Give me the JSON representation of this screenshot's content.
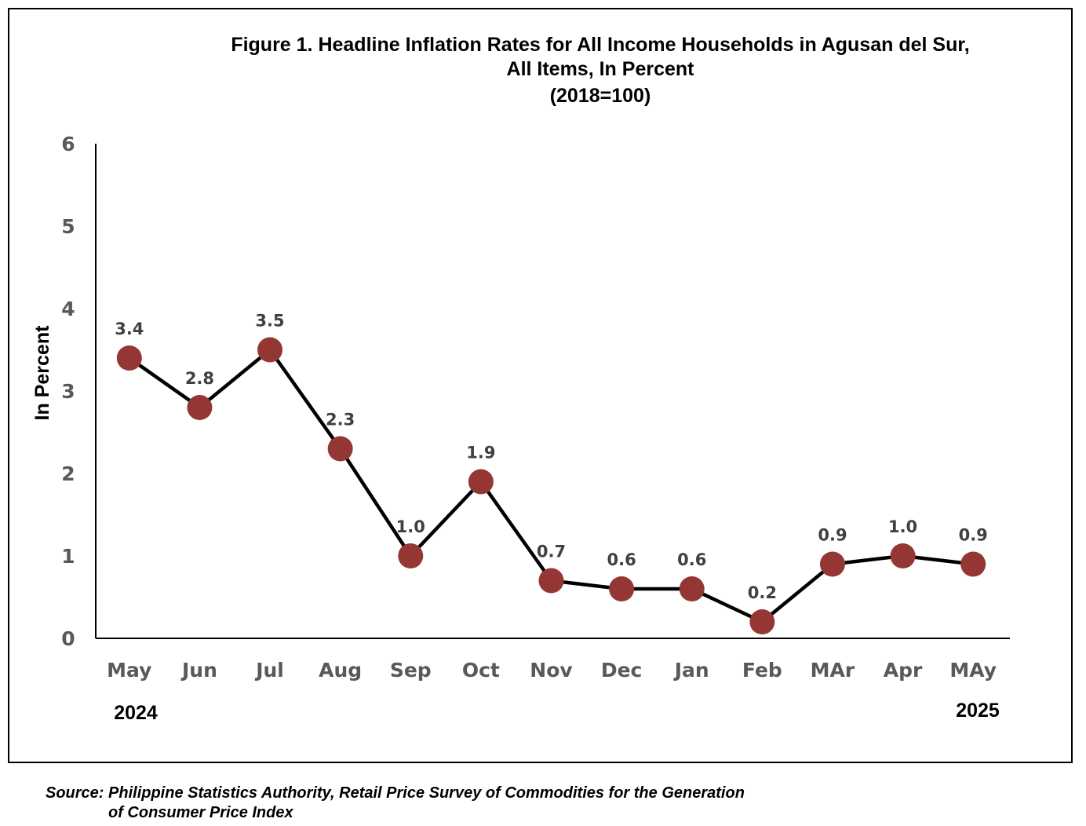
{
  "chart_data": {
    "type": "line",
    "title": [
      "Figure 1. Headline Inflation Rates for All Income Households in Agusan del Sur,",
      "All Items, In Percent",
      "(2018=100)"
    ],
    "ylabel": "In Percent",
    "xlabel": "",
    "categories": [
      "May",
      "Jun",
      "Jul",
      "Aug",
      "Sep",
      "Oct",
      "Nov",
      "Dec",
      "Jan",
      "Feb",
      "MAr",
      "Apr",
      "MAy"
    ],
    "series": [
      {
        "values": [
          3.4,
          2.8,
          3.5,
          2.3,
          1.0,
          1.9,
          0.7,
          0.6,
          0.6,
          0.2,
          0.9,
          1.0,
          0.9
        ]
      }
    ],
    "data_labels": [
      "3.4",
      "2.8",
      "3.5",
      "2.3",
      "1.0",
      "1.9",
      "0.7",
      "0.6",
      "0.6",
      "0.2",
      "0.9",
      "1.0",
      "0.9"
    ],
    "ylim": [
      0,
      6
    ],
    "yticks": [
      "0",
      "1",
      "2",
      "3",
      "4",
      "5",
      "6"
    ],
    "year_labels": [
      "2024",
      "2025"
    ],
    "grid": false,
    "legend": "none",
    "colors": {
      "line": "#000000",
      "marker": "#943634",
      "tick_text": "#595959",
      "data_label": "#404040"
    }
  },
  "source": {
    "line1": "Source: Philippine Statistics Authority, Retail Price Survey of Commodities for the Generation",
    "line2": "of Consumer Price Index"
  }
}
